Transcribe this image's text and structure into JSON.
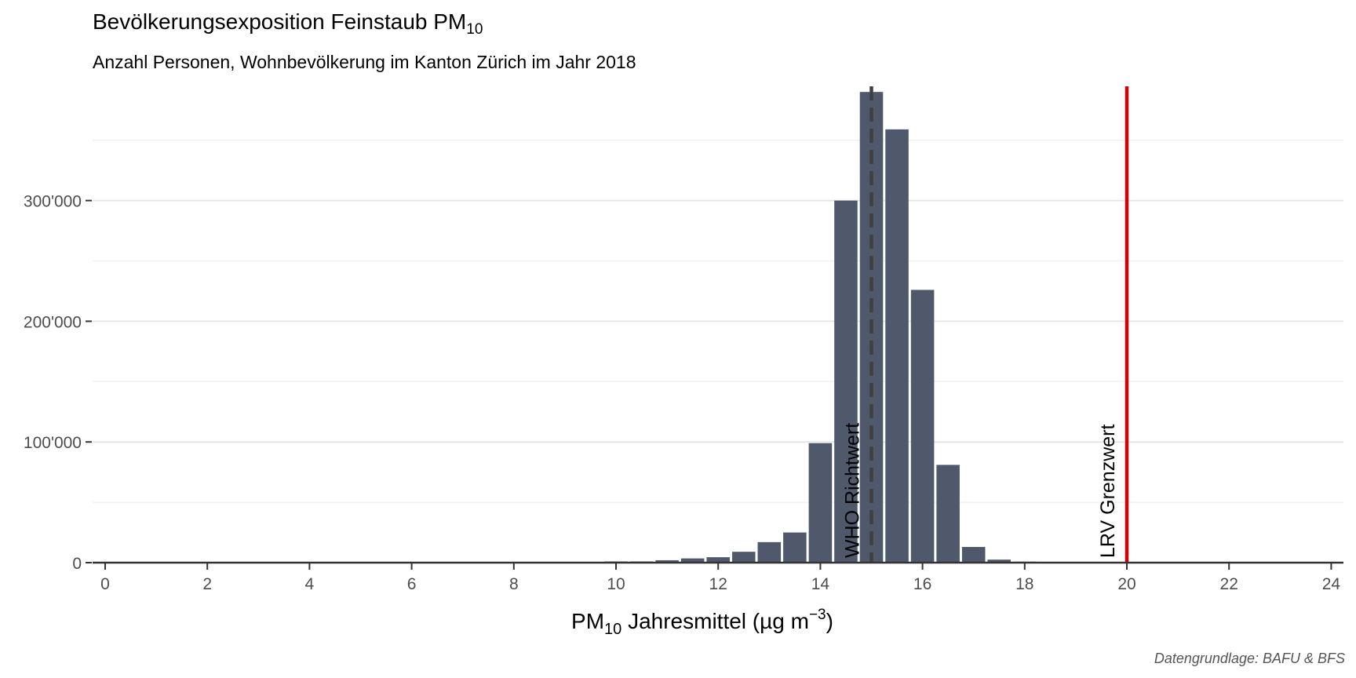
{
  "title": {
    "main": "Bevölkerungsexposition Feinstaub PM",
    "sub": "10"
  },
  "subtitle": "Anzahl Personen, Wohnbevölkerung im Kanton Zürich im Jahr 2018",
  "caption": "Datengrundlage: BAFU & BFS",
  "chart_data": {
    "type": "bar",
    "x_label": {
      "pre": "PM",
      "sub": "10",
      "mid": " Jahresmittel (µg m",
      "sup": "−3",
      "post": ")"
    },
    "x_range": [
      0,
      24
    ],
    "x_ticks": [
      0,
      2,
      4,
      6,
      8,
      10,
      12,
      14,
      16,
      18,
      20,
      22,
      24
    ],
    "y_range": [
      0,
      390000
    ],
    "y_ticks": [
      0,
      100000,
      200000,
      300000
    ],
    "y_tick_labels": [
      "0",
      "100'000",
      "200'000",
      "300'000"
    ],
    "bin_width": 0.5,
    "bins": [
      {
        "x": 10.0,
        "value": 1000
      },
      {
        "x": 10.5,
        "value": 1000
      },
      {
        "x": 11.0,
        "value": 2000
      },
      {
        "x": 11.5,
        "value": 3500
      },
      {
        "x": 12.0,
        "value": 4500
      },
      {
        "x": 12.5,
        "value": 9000
      },
      {
        "x": 13.0,
        "value": 17000
      },
      {
        "x": 13.5,
        "value": 25000
      },
      {
        "x": 14.0,
        "value": 99000
      },
      {
        "x": 14.5,
        "value": 300000
      },
      {
        "x": 15.0,
        "value": 390000
      },
      {
        "x": 15.5,
        "value": 359000
      },
      {
        "x": 16.0,
        "value": 226000
      },
      {
        "x": 16.5,
        "value": 81000
      },
      {
        "x": 17.0,
        "value": 13000
      },
      {
        "x": 17.5,
        "value": 2500
      },
      {
        "x": 18.0,
        "value": 800
      }
    ],
    "reference_lines": [
      {
        "x": 15,
        "label": "WHO Richtwert",
        "color": "#404040",
        "style": "dashed"
      },
      {
        "x": 20,
        "label": "LRV Grenzwert",
        "color": "#d40000",
        "style": "solid"
      }
    ],
    "bar_color": "#4f596b",
    "grid": true
  }
}
